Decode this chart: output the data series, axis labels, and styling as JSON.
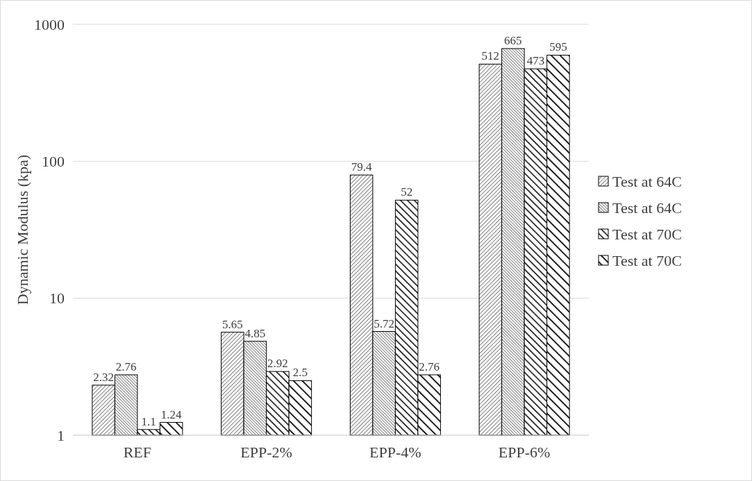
{
  "chart_data": {
    "type": "bar",
    "ylabel": "Dynamic Modulus (kpa)",
    "categories": [
      "REF",
      "EPP-2%",
      "EPP-4%",
      "EPP-6%"
    ],
    "series": [
      {
        "name": "Test at 64C",
        "color": "#000000",
        "values": [
          2.32,
          5.65,
          79.4,
          512
        ]
      },
      {
        "name": "Test at 64C",
        "color": "#000000",
        "values": [
          2.76,
          4.85,
          5.72,
          665
        ]
      },
      {
        "name": "Test at 70C",
        "color": "#000000",
        "values": [
          1.1,
          2.92,
          52,
          473
        ]
      },
      {
        "name": "Test at 70C",
        "color": "#000000",
        "values": [
          1.24,
          2.5,
          2.76,
          595
        ]
      }
    ],
    "log": true,
    "ylim": [
      1,
      1000
    ],
    "yticks": [
      1,
      10,
      100,
      1000
    ],
    "grid": "y",
    "legend": "right",
    "data_labels": true
  }
}
